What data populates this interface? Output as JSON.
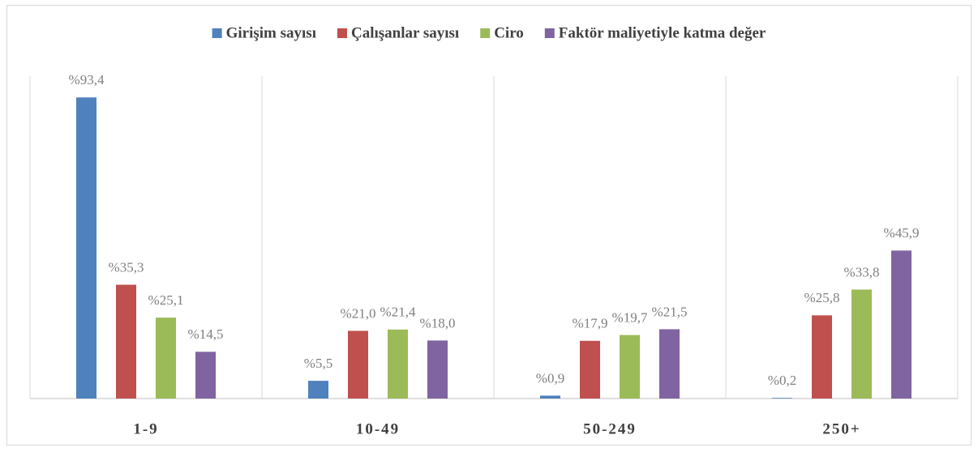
{
  "chart_data": {
    "type": "bar",
    "categories": [
      "1-9",
      "10-49",
      "50-249",
      "250+"
    ],
    "series": [
      {
        "name": "Girişim sayısı",
        "color": "#4f81bd",
        "values": [
          93.4,
          5.5,
          0.9,
          0.2
        ],
        "value_labels": [
          "%93,4",
          "%5,5",
          "%0,9",
          "%0,2"
        ]
      },
      {
        "name": "Çalışanlar sayısı",
        "color": "#c0504d",
        "values": [
          35.3,
          21.0,
          17.9,
          25.8
        ],
        "value_labels": [
          "%35,3",
          "%21,0",
          "%17,9",
          "%25,8"
        ]
      },
      {
        "name": "Ciro",
        "color": "#9bbb59",
        "values": [
          25.1,
          21.4,
          19.7,
          33.8
        ],
        "value_labels": [
          "%25,1",
          "%21,4",
          "%19,7",
          "%33,8"
        ]
      },
      {
        "name": "Faktör maliyetiyle katma değer",
        "color": "#8064a2",
        "values": [
          14.5,
          18.0,
          21.5,
          45.9
        ],
        "value_labels": [
          "%14,5",
          "%18,0",
          "%21,5",
          "%45,9"
        ]
      }
    ],
    "ylim": [
      0,
      100
    ],
    "legend": "top"
  }
}
